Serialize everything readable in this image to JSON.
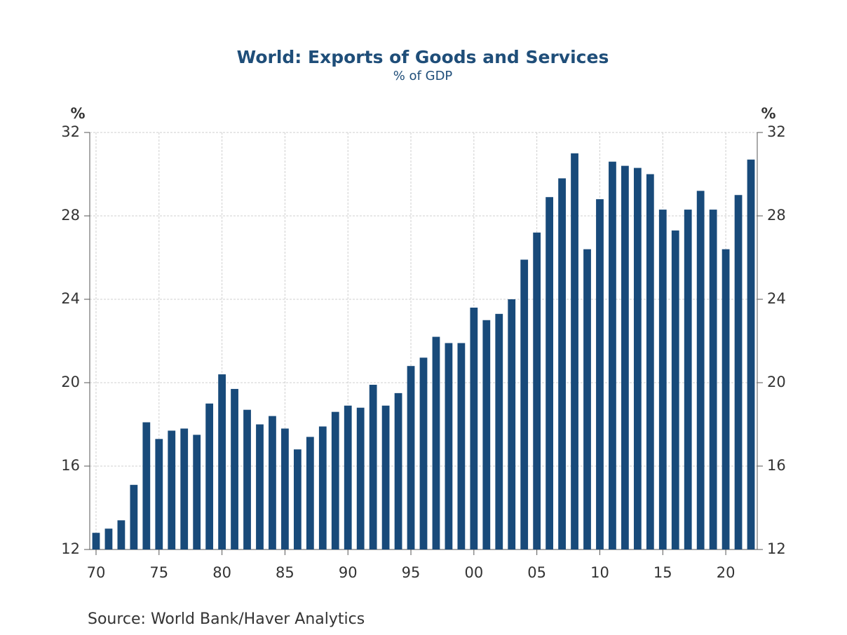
{
  "chart_data": {
    "type": "bar",
    "title": "World: Exports of Goods and Services",
    "subtitle": "% of GDP",
    "y_label": "%",
    "y2_label": "%",
    "source": "Source:  World Bank/Haver Analytics",
    "categories": [
      "70",
      null,
      null,
      null,
      null,
      "75",
      null,
      null,
      null,
      null,
      "80",
      null,
      null,
      null,
      null,
      "85",
      null,
      null,
      null,
      null,
      "90",
      null,
      null,
      null,
      null,
      "95",
      null,
      null,
      null,
      null,
      "00",
      null,
      null,
      null,
      null,
      "05",
      null,
      null,
      null,
      null,
      "10",
      null,
      null,
      null,
      null,
      "15",
      null,
      null,
      null,
      null,
      "20",
      null,
      null
    ],
    "values": [
      12.8,
      13.0,
      13.4,
      15.1,
      18.1,
      17.3,
      17.7,
      17.8,
      17.5,
      19.0,
      20.4,
      19.7,
      18.7,
      18.0,
      18.4,
      17.8,
      16.8,
      17.4,
      17.9,
      18.6,
      18.9,
      18.8,
      19.9,
      18.9,
      19.5,
      20.8,
      21.2,
      22.2,
      21.9,
      21.9,
      23.6,
      23.0,
      23.3,
      24.0,
      25.9,
      27.2,
      28.9,
      29.8,
      31.0,
      26.4,
      28.8,
      30.6,
      30.4,
      30.3,
      30.0,
      28.3,
      27.3,
      28.3,
      29.2,
      28.3,
      26.4,
      29.0,
      30.7
    ],
    "color": "#184a7a",
    "ylim": [
      12,
      32
    ],
    "yticks": [
      12,
      16,
      20,
      24,
      28,
      32
    ],
    "y2lim": [
      12,
      32
    ],
    "y2ticks": [
      12,
      16,
      20,
      24,
      28,
      32
    ],
    "grid": true
  }
}
